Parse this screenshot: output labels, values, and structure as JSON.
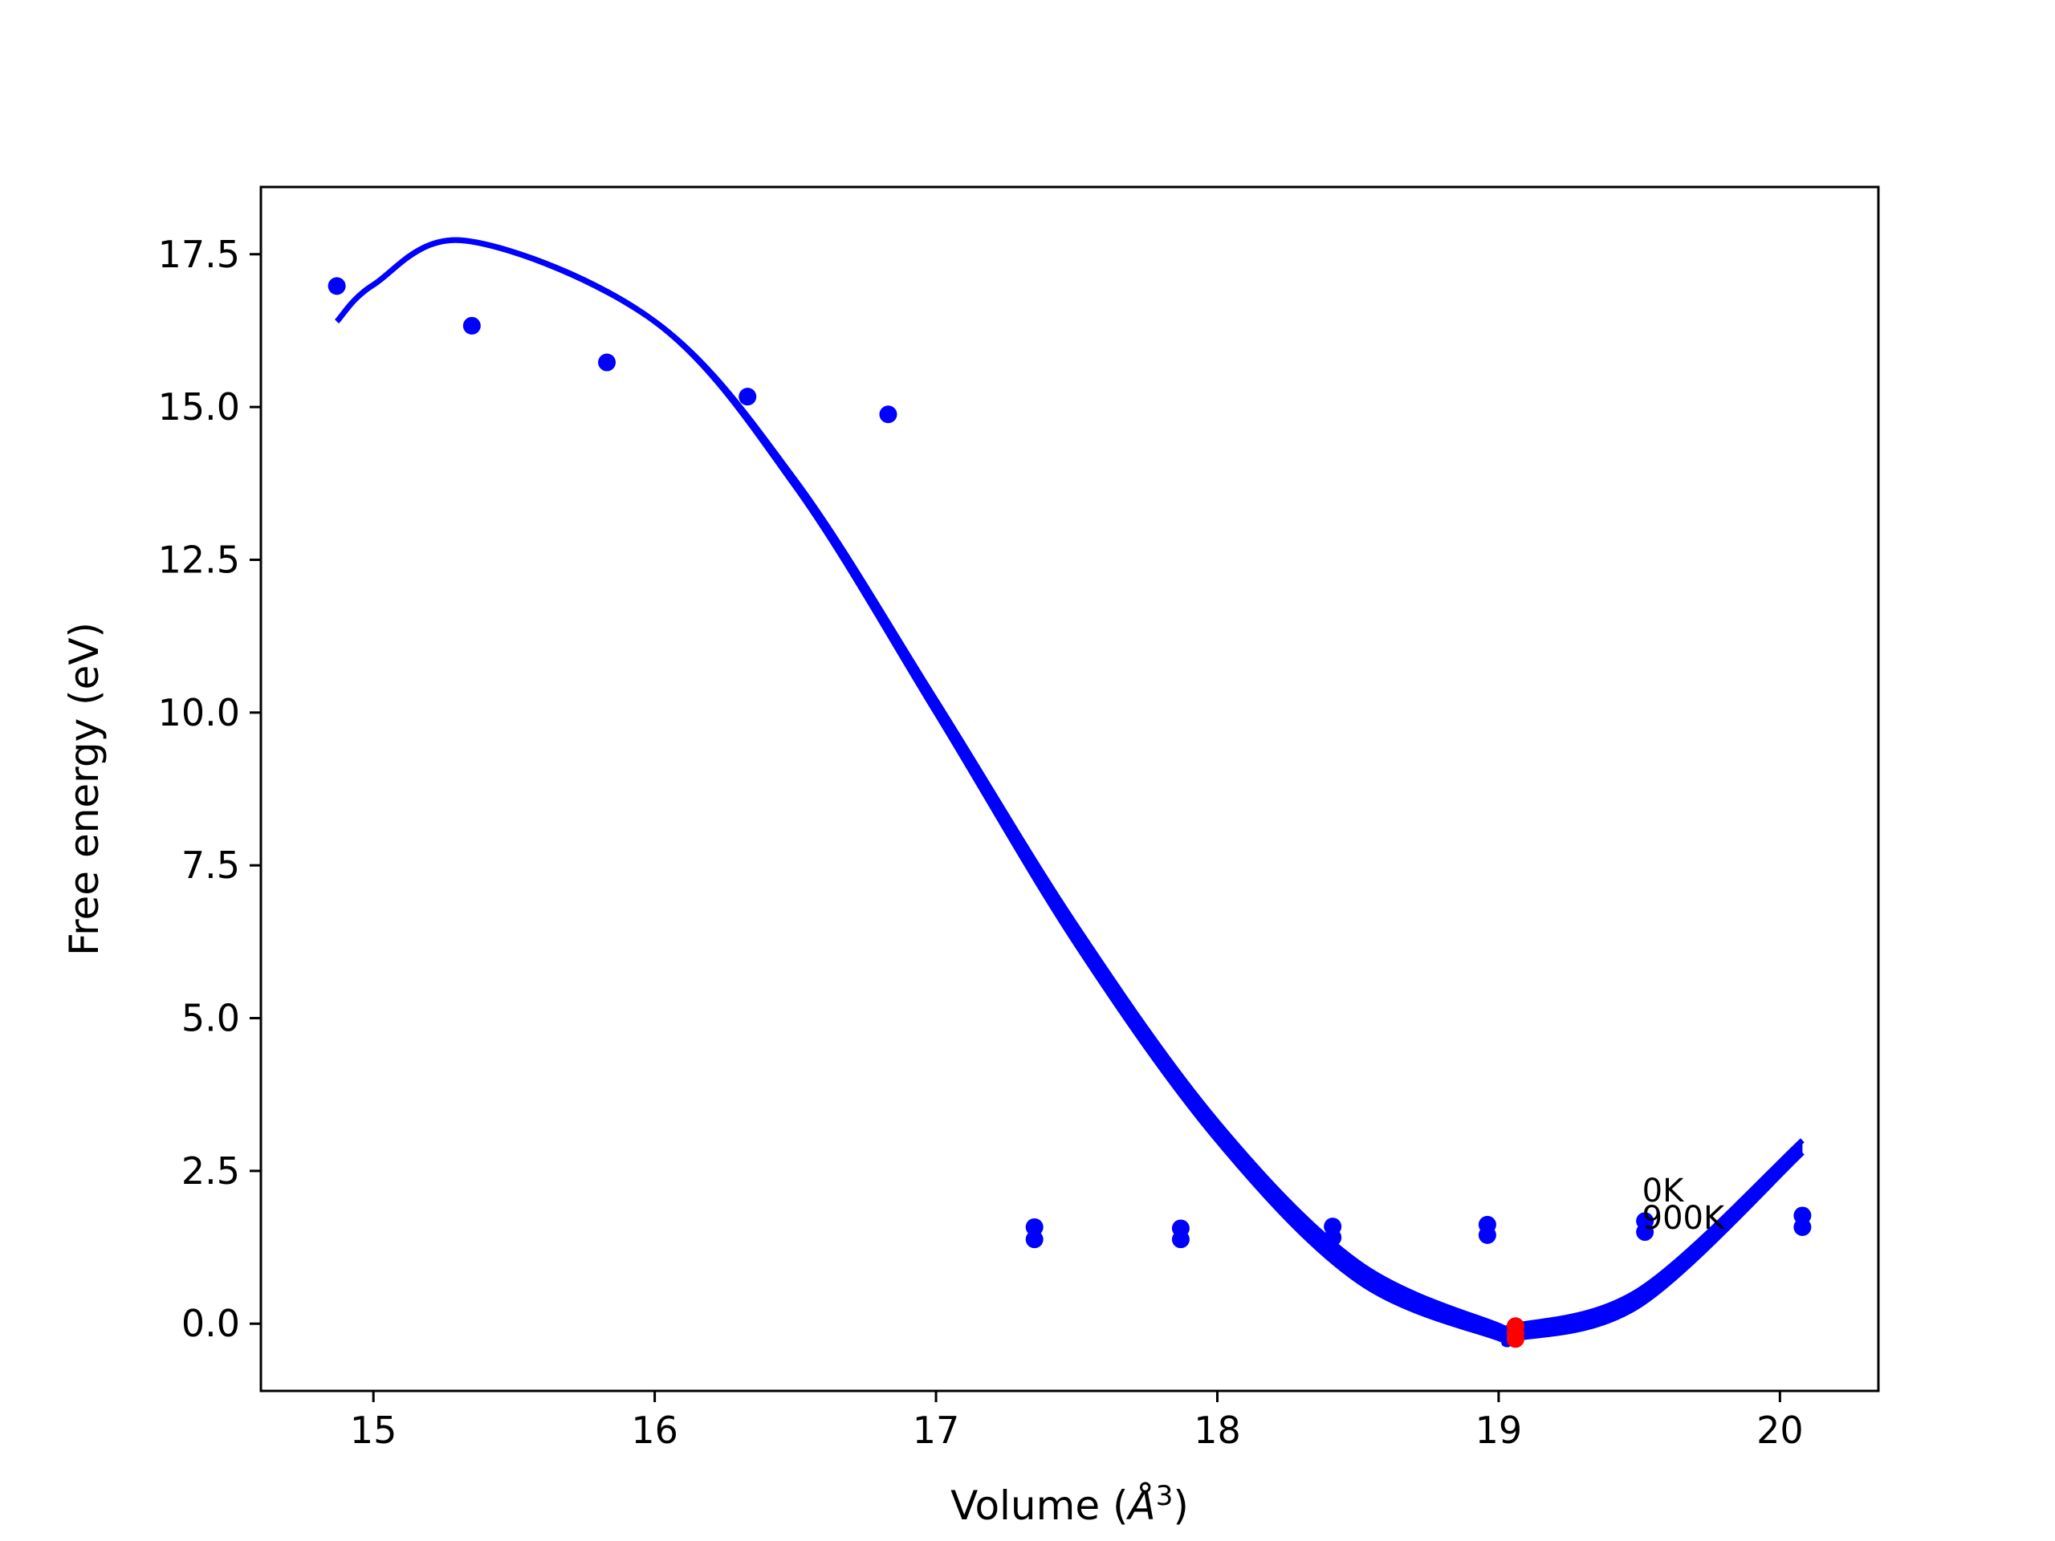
{
  "chart_data": {
    "type": "scatter",
    "xlabel_prefix": "Volume (",
    "xlabel_unit": "Å",
    "xlabel_exp": "3",
    "xlabel_suffix": ")",
    "ylabel": "Free energy (eV)",
    "xlim": [
      14.6,
      20.35
    ],
    "ylim": [
      -1.1,
      18.6
    ],
    "x_ticks": [
      15,
      16,
      17,
      18,
      19,
      20
    ],
    "x_tick_labels": [
      "15",
      "16",
      "17",
      "18",
      "19",
      "20"
    ],
    "y_ticks": [
      0,
      2.5,
      5,
      7.5,
      10,
      12.5,
      15,
      17.5
    ],
    "y_tick_labels": [
      "0.0",
      "2.5",
      "5.0",
      "7.5",
      "10.0",
      "12.5",
      "15.0",
      "17.5"
    ],
    "grid": false,
    "colors": {
      "series": "#0000ff",
      "minimum": "#ff0000",
      "axes": "#000000"
    },
    "points": {
      "name": "",
      "x": [
        14.87,
        15.35,
        15.83,
        16.33,
        16.83,
        17.35,
        17.35,
        17.87,
        17.87,
        18.41,
        18.41,
        18.96,
        18.96,
        19.52,
        19.52,
        20.08,
        20.08
      ],
      "y": [
        16.98,
        16.33,
        15.73,
        15.17,
        14.88,
        1.58,
        1.38,
        1.56,
        1.38,
        1.59,
        1.41,
        1.62,
        1.45,
        1.68,
        1.5,
        1.77,
        1.58
      ]
    },
    "fit_curves": [
      {
        "name": "0K",
        "x": [
          14.87,
          15.0,
          15.33,
          16.0,
          16.5,
          17.0,
          17.5,
          18.0,
          18.5,
          19.0,
          19.05,
          19.5,
          20.08
        ],
        "y": [
          16.4,
          17.0,
          17.72,
          16.4,
          13.8,
          10.2,
          6.5,
          3.3,
          1.0,
          -0.03,
          -0.04,
          0.55,
          3.0
        ]
      },
      {
        "name": "900K",
        "x": [
          14.87,
          15.0,
          15.33,
          16.0,
          16.5,
          17.0,
          17.5,
          18.0,
          18.5,
          19.0,
          19.05,
          19.5,
          20.08
        ],
        "y": [
          16.4,
          17.0,
          17.72,
          16.4,
          13.7,
          10.0,
          6.2,
          3.0,
          0.7,
          -0.24,
          -0.25,
          0.3,
          2.8
        ]
      }
    ],
    "minima": {
      "x": [
        19.06,
        19.06,
        19.06
      ],
      "y": [
        -0.04,
        -0.15,
        -0.25
      ]
    },
    "annotations": [
      {
        "text": "0K",
        "x": 19.51,
        "y": 2.0
      },
      {
        "text": "900K",
        "x": 19.51,
        "y": 1.55
      }
    ]
  }
}
